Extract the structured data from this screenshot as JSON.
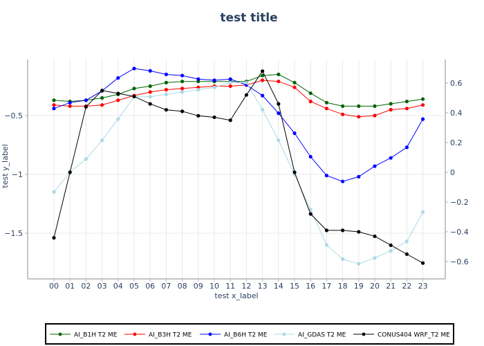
{
  "chart_data": {
    "type": "line",
    "title": "test title",
    "xlabel": "test x_label",
    "ylabel": "test y_label",
    "categories": [
      "00",
      "01",
      "02",
      "03",
      "04",
      "05",
      "06",
      "07",
      "08",
      "09",
      "10",
      "11",
      "12",
      "13",
      "14",
      "15",
      "16",
      "17",
      "18",
      "19",
      "20",
      "21",
      "22",
      "23"
    ],
    "y_left": {
      "ticks": [
        -0.5,
        -1,
        -1.5
      ],
      "tick_labels": [
        "−0.5",
        "−1",
        "−1.5"
      ]
    },
    "y_right": {
      "ticks": [
        0.6,
        0.4,
        0.2,
        0,
        -0.2,
        -0.4,
        -0.6
      ],
      "tick_labels": [
        "0.6",
        "0.4",
        "0.2",
        "0",
        "−0.2",
        "−0.4",
        "−0.6"
      ]
    },
    "grid": true,
    "legend_position": "bottom",
    "series": [
      {
        "name": "AI_B1H T2 ME",
        "color": "#006400",
        "axis": "left",
        "values": [
          -0.37,
          -0.38,
          -0.37,
          -0.35,
          -0.32,
          -0.27,
          -0.25,
          -0.22,
          -0.21,
          -0.21,
          -0.21,
          -0.21,
          -0.21,
          -0.16,
          -0.15,
          -0.22,
          -0.31,
          -0.39,
          -0.42,
          -0.42,
          -0.42,
          -0.4,
          -0.38,
          -0.36
        ]
      },
      {
        "name": "AI_B3H T2 ME",
        "color": "#ff0000",
        "axis": "left",
        "values": [
          -0.41,
          -0.42,
          -0.42,
          -0.41,
          -0.37,
          -0.33,
          -0.3,
          -0.28,
          -0.27,
          -0.26,
          -0.25,
          -0.25,
          -0.24,
          -0.2,
          -0.21,
          -0.26,
          -0.38,
          -0.44,
          -0.49,
          -0.51,
          -0.5,
          -0.45,
          -0.44,
          -0.41
        ]
      },
      {
        "name": "AI_B6H T2 ME",
        "color": "#0000ff",
        "axis": "left",
        "values": [
          -0.44,
          -0.39,
          -0.37,
          -0.29,
          -0.18,
          -0.1,
          -0.12,
          -0.15,
          -0.16,
          -0.19,
          -0.2,
          -0.19,
          -0.24,
          -0.33,
          -0.48,
          -0.65,
          -0.85,
          -1.01,
          -1.06,
          -1.02,
          -0.93,
          -0.86,
          -0.77,
          -0.53
        ]
      },
      {
        "name": "AI_GDAS T2 ME",
        "color": "#add8e6",
        "axis": "left",
        "values": [
          -1.15,
          -0.98,
          -0.87,
          -0.71,
          -0.53,
          -0.34,
          -0.34,
          -0.32,
          -0.3,
          -0.28,
          -0.26,
          -0.22,
          -0.22,
          -0.45,
          -0.71,
          -1.0,
          -1.3,
          -1.6,
          -1.72,
          -1.76,
          -1.71,
          -1.65,
          -1.57,
          -1.32
        ]
      },
      {
        "name": "CONUS404 WRF_T2 ME",
        "color": "#000000",
        "axis": "right",
        "values": [
          -0.44,
          0.0,
          0.44,
          0.55,
          0.53,
          0.51,
          0.46,
          0.42,
          0.41,
          0.38,
          0.37,
          0.35,
          0.52,
          0.68,
          0.46,
          0.0,
          -0.28,
          -0.39,
          -0.39,
          -0.4,
          -0.43,
          -0.49,
          -0.55,
          -0.61
        ]
      }
    ]
  }
}
